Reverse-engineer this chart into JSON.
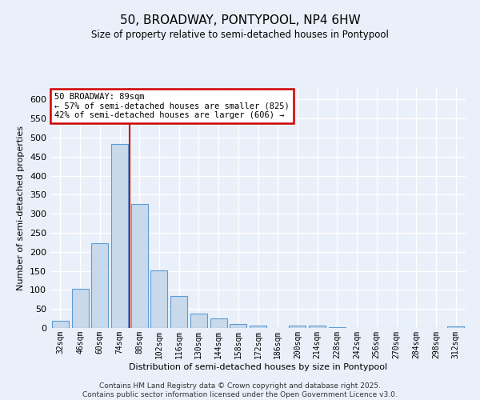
{
  "title1": "50, BROADWAY, PONTYPOOL, NP4 6HW",
  "title2": "Size of property relative to semi-detached houses in Pontypool",
  "xlabel": "Distribution of semi-detached houses by size in Pontypool",
  "ylabel": "Number of semi-detached properties",
  "footer": "Contains HM Land Registry data © Crown copyright and database right 2025.\nContains public sector information licensed under the Open Government Licence v3.0.",
  "categories": [
    "32sqm",
    "46sqm",
    "60sqm",
    "74sqm",
    "88sqm",
    "102sqm",
    "116sqm",
    "130sqm",
    "144sqm",
    "158sqm",
    "172sqm",
    "186sqm",
    "200sqm",
    "214sqm",
    "228sqm",
    "242sqm",
    "256sqm",
    "270sqm",
    "284sqm",
    "298sqm",
    "312sqm"
  ],
  "values": [
    18,
    103,
    222,
    483,
    325,
    152,
    85,
    38,
    25,
    10,
    7,
    0,
    6,
    6,
    2,
    1,
    1,
    1,
    0,
    0,
    5
  ],
  "bar_color": "#c9d9ec",
  "bar_edge_color": "#5b9bd5",
  "red_line_label": "50 BROADWAY: 89sqm",
  "annotation_smaller": "← 57% of semi-detached houses are smaller (825)",
  "annotation_larger": "42% of semi-detached houses are larger (606) →",
  "ylim": [
    0,
    630
  ],
  "yticks": [
    0,
    50,
    100,
    150,
    200,
    250,
    300,
    350,
    400,
    450,
    500,
    550,
    600
  ],
  "bg_color": "#eaf0f9",
  "grid_color": "#ffffff",
  "annotation_box_color": "#cc0000"
}
